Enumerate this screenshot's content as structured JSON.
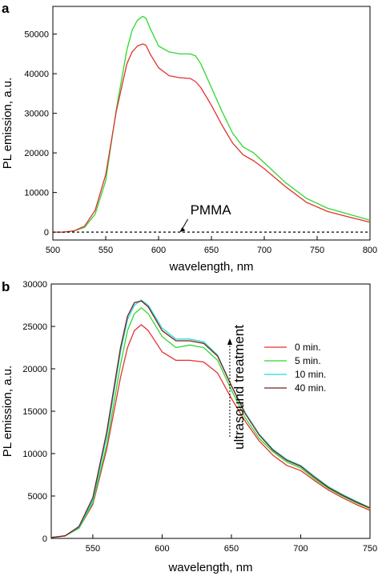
{
  "chart_data": [
    {
      "panel": "a",
      "type": "line",
      "xlabel": "wavelength, nm",
      "ylabel": "PL emission, a.u.",
      "xlim": [
        500,
        800
      ],
      "ylim": [
        -2000,
        57000
      ],
      "xticks": [
        500,
        550,
        600,
        650,
        700,
        750,
        800
      ],
      "yticks": [
        0,
        10000,
        20000,
        30000,
        40000,
        50000
      ],
      "grid": false,
      "legend": "none",
      "series": [
        {
          "color": "#2fd82f",
          "dash": false,
          "x": [
            500,
            510,
            520,
            530,
            540,
            550,
            560,
            570,
            575,
            580,
            585,
            588,
            592,
            600,
            610,
            620,
            630,
            635,
            640,
            650,
            660,
            670,
            680,
            690,
            700,
            720,
            740,
            760,
            780,
            800
          ],
          "y": [
            0,
            0,
            300,
            1200,
            4500,
            13000,
            31000,
            46000,
            51000,
            53500,
            54500,
            54000,
            51500,
            47000,
            45500,
            45000,
            45000,
            44500,
            42500,
            36500,
            30500,
            25000,
            21500,
            20000,
            17500,
            12500,
            8500,
            6000,
            4500,
            3000
          ]
        },
        {
          "color": "#e53030",
          "dash": false,
          "x": [
            500,
            510,
            520,
            530,
            540,
            550,
            560,
            570,
            575,
            580,
            585,
            588,
            592,
            600,
            610,
            620,
            630,
            635,
            640,
            650,
            660,
            670,
            680,
            690,
            700,
            720,
            740,
            760,
            780,
            800
          ],
          "y": [
            0,
            0,
            300,
            1500,
            5500,
            14500,
            30500,
            42500,
            45500,
            47000,
            47500,
            47200,
            45000,
            41500,
            39500,
            39000,
            38800,
            38000,
            36500,
            32000,
            27000,
            22500,
            19500,
            18000,
            16000,
            11500,
            7500,
            5200,
            3800,
            2500
          ]
        },
        {
          "color": "#000000",
          "dash": true,
          "x": [
            500,
            800
          ],
          "y": [
            0,
            0
          ]
        }
      ],
      "annotations": [
        {
          "text": "PMMA",
          "x": 630,
          "y": 4500,
          "arrow_to": [
            620,
            0
          ]
        }
      ]
    },
    {
      "panel": "b",
      "type": "line",
      "xlabel": "wavelength, nm",
      "ylabel": "PL emission, a.u.",
      "xlim": [
        520,
        750
      ],
      "ylim": [
        0,
        30000
      ],
      "xticks": [
        550,
        600,
        650,
        700,
        750
      ],
      "yticks": [
        0,
        5000,
        10000,
        15000,
        20000,
        25000,
        30000
      ],
      "grid": false,
      "legend": "right",
      "series": [
        {
          "name": "0 min.",
          "color": "#e53030",
          "x": [
            520,
            530,
            540,
            550,
            560,
            570,
            575,
            580,
            585,
            590,
            600,
            610,
            620,
            630,
            640,
            650,
            660,
            670,
            680,
            690,
            700,
            710,
            720,
            730,
            740,
            750
          ],
          "y": [
            100,
            300,
            1200,
            4000,
            10500,
            19000,
            22500,
            24500,
            25200,
            24500,
            22000,
            21000,
            21000,
            20800,
            19500,
            16500,
            13800,
            11500,
            9800,
            8600,
            8000,
            6800,
            5700,
            4800,
            4000,
            3300
          ]
        },
        {
          "name": "5 min.",
          "color": "#2fd82f",
          "x": [
            520,
            530,
            540,
            550,
            560,
            570,
            575,
            580,
            585,
            590,
            600,
            610,
            620,
            630,
            640,
            650,
            660,
            670,
            680,
            690,
            700,
            710,
            720,
            730,
            740,
            750
          ],
          "y": [
            100,
            300,
            1200,
            4200,
            11000,
            20500,
            24500,
            26500,
            27200,
            26500,
            23800,
            22500,
            22800,
            22500,
            21000,
            17500,
            14200,
            11800,
            10200,
            9000,
            8300,
            7000,
            5900,
            5000,
            4200,
            3500
          ]
        },
        {
          "name": "10 min.",
          "color": "#22d8d8",
          "x": [
            520,
            530,
            540,
            550,
            560,
            570,
            575,
            580,
            585,
            590,
            600,
            610,
            620,
            630,
            640,
            650,
            660,
            670,
            680,
            690,
            700,
            710,
            720,
            730,
            740,
            750
          ],
          "y": [
            100,
            300,
            1300,
            4500,
            12000,
            22000,
            25800,
            27500,
            28100,
            27500,
            24800,
            23500,
            23500,
            23200,
            21600,
            18000,
            14800,
            12300,
            10500,
            9300,
            8600,
            7300,
            6100,
            5200,
            4400,
            3600
          ]
        },
        {
          "name": "40 min.",
          "color": "#7a1f1f",
          "x": [
            520,
            530,
            540,
            550,
            560,
            570,
            575,
            580,
            585,
            590,
            600,
            610,
            620,
            630,
            640,
            650,
            660,
            670,
            680,
            690,
            700,
            710,
            720,
            730,
            740,
            750
          ],
          "y": [
            100,
            300,
            1400,
            4800,
            12500,
            22500,
            26200,
            27800,
            28000,
            27300,
            24500,
            23300,
            23300,
            23000,
            21500,
            18000,
            14700,
            12200,
            10400,
            9200,
            8500,
            7200,
            6000,
            5100,
            4300,
            3600
          ]
        }
      ],
      "annotations": [
        {
          "text": "ultrasound treatment",
          "orientation": "vertical",
          "arrow": "up",
          "x": 650
        }
      ]
    }
  ]
}
